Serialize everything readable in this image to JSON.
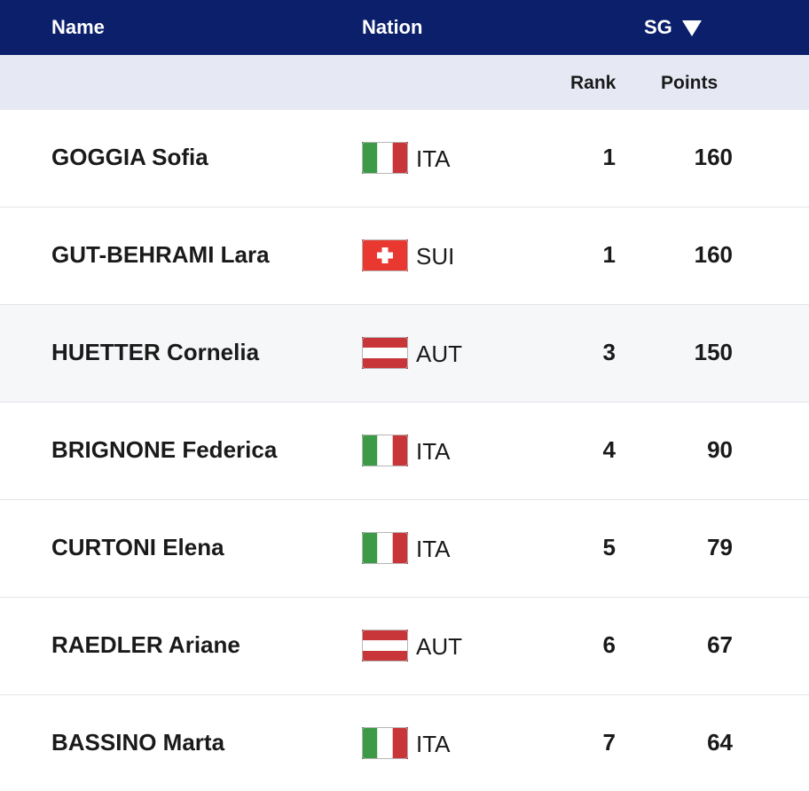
{
  "header": {
    "name": "Name",
    "nation": "Nation",
    "sg": "SG",
    "rank": "Rank",
    "points": "Points"
  },
  "table": {
    "rows": [
      [
        "GOGGIA Sofia",
        "ITA",
        "1",
        "160"
      ],
      [
        "GUT-BEHRAMI Lara",
        "SUI",
        "1",
        "160"
      ],
      [
        "HUETTER Cornelia",
        "AUT",
        "3",
        "150"
      ],
      [
        "BRIGNONE Federica",
        "ITA",
        "4",
        "90"
      ],
      [
        "CURTONI Elena",
        "ITA",
        "5",
        "79"
      ],
      [
        "RAEDLER Ariane",
        "AUT",
        "6",
        "67"
      ],
      [
        "BASSINO Marta",
        "ITA",
        "7",
        "64"
      ]
    ]
  }
}
